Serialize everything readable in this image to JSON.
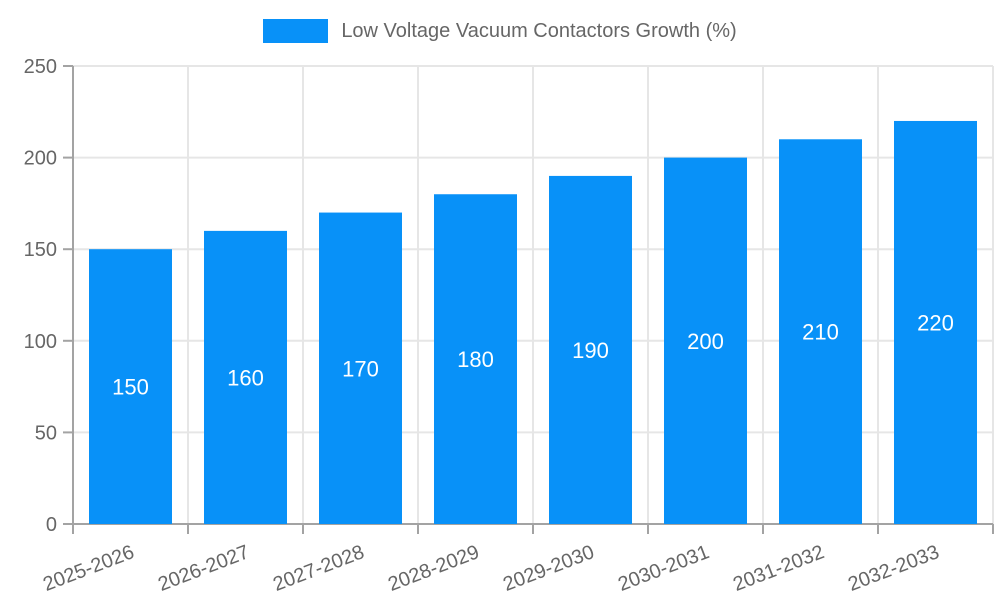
{
  "legend": {
    "label": "Low Voltage Vacuum Contactors Growth (%)"
  },
  "colors": {
    "bar": "#0891f8",
    "grid": "#e6e6e6",
    "axis": "#a3a3a3",
    "tick_text": "#666666",
    "value_label": "#ffffff",
    "background": "#ffffff"
  },
  "chart_data": {
    "type": "bar",
    "categories": [
      "2025-2026",
      "2026-2027",
      "2027-2028",
      "2028-2029",
      "2029-2030",
      "2030-2031",
      "2031-2032",
      "2032-2033"
    ],
    "values": [
      150,
      160,
      170,
      180,
      190,
      200,
      210,
      220
    ],
    "title": "Low Voltage Vacuum Contactors Growth (%)",
    "xlabel": "",
    "ylabel": "",
    "ylim": [
      0,
      250
    ],
    "ytick_step": 50,
    "yticks": [
      0,
      50,
      100,
      150,
      200,
      250
    ],
    "grid": true,
    "legend_position": "top",
    "bar_value_labels": true,
    "x_label_rotation_deg": -21
  }
}
